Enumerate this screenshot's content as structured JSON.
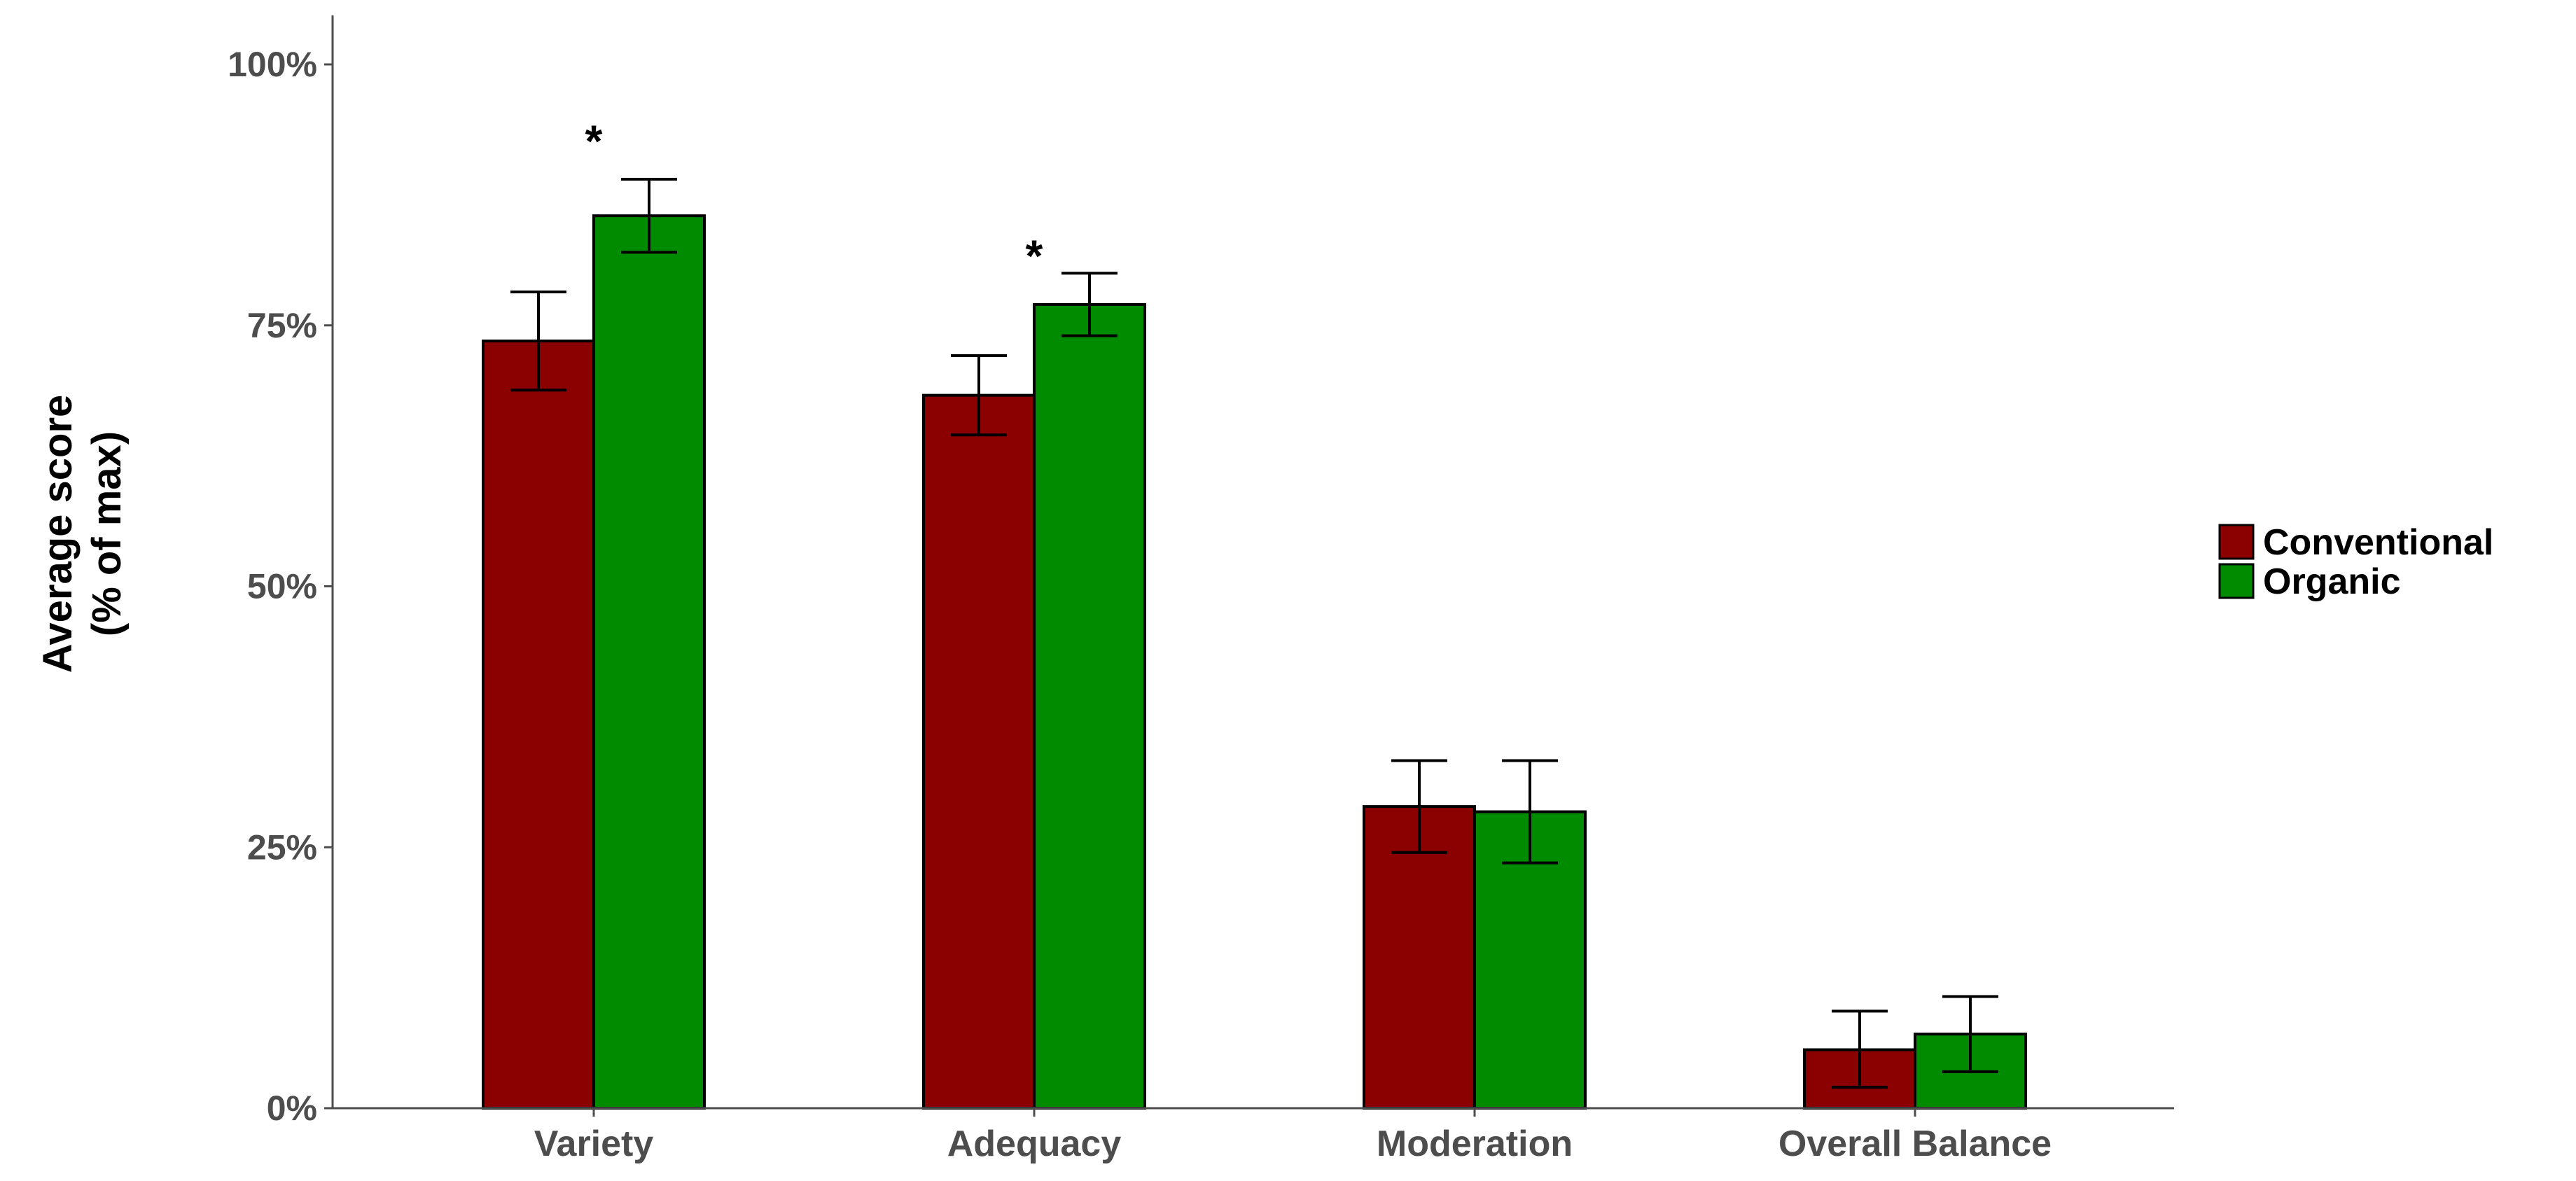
{
  "chart_data": {
    "type": "bar",
    "title": "",
    "xlabel": "",
    "ylabel": [
      "Average score",
      "(% of max)"
    ],
    "categories": [
      "Variety",
      "Adequacy",
      "Moderation",
      "Overall Balance"
    ],
    "ylim": [
      0,
      1.05
    ],
    "yticks": [
      0,
      0.25,
      0.5,
      0.75,
      1.0
    ],
    "ytick_labels": [
      "0%",
      "25%",
      "50%",
      "75%",
      "100%"
    ],
    "series": [
      {
        "name": "Conventional",
        "color": "#8b0000",
        "values": [
          0.735,
          0.683,
          0.289,
          0.056
        ],
        "err_low": [
          0.688,
          0.645,
          0.245,
          0.02
        ],
        "err_high": [
          0.782,
          0.721,
          0.333,
          0.093
        ]
      },
      {
        "name": "Organic",
        "color": "#008b00",
        "values": [
          0.855,
          0.77,
          0.284,
          0.071
        ],
        "err_low": [
          0.82,
          0.74,
          0.235,
          0.035
        ],
        "err_high": [
          0.89,
          0.8,
          0.333,
          0.107
        ]
      }
    ],
    "annotations": [
      {
        "text": "*",
        "category": "Variety",
        "y": 0.94
      },
      {
        "text": "*",
        "category": "Adequacy",
        "y": 0.83
      }
    ],
    "grid": false,
    "legend_position": "right"
  }
}
